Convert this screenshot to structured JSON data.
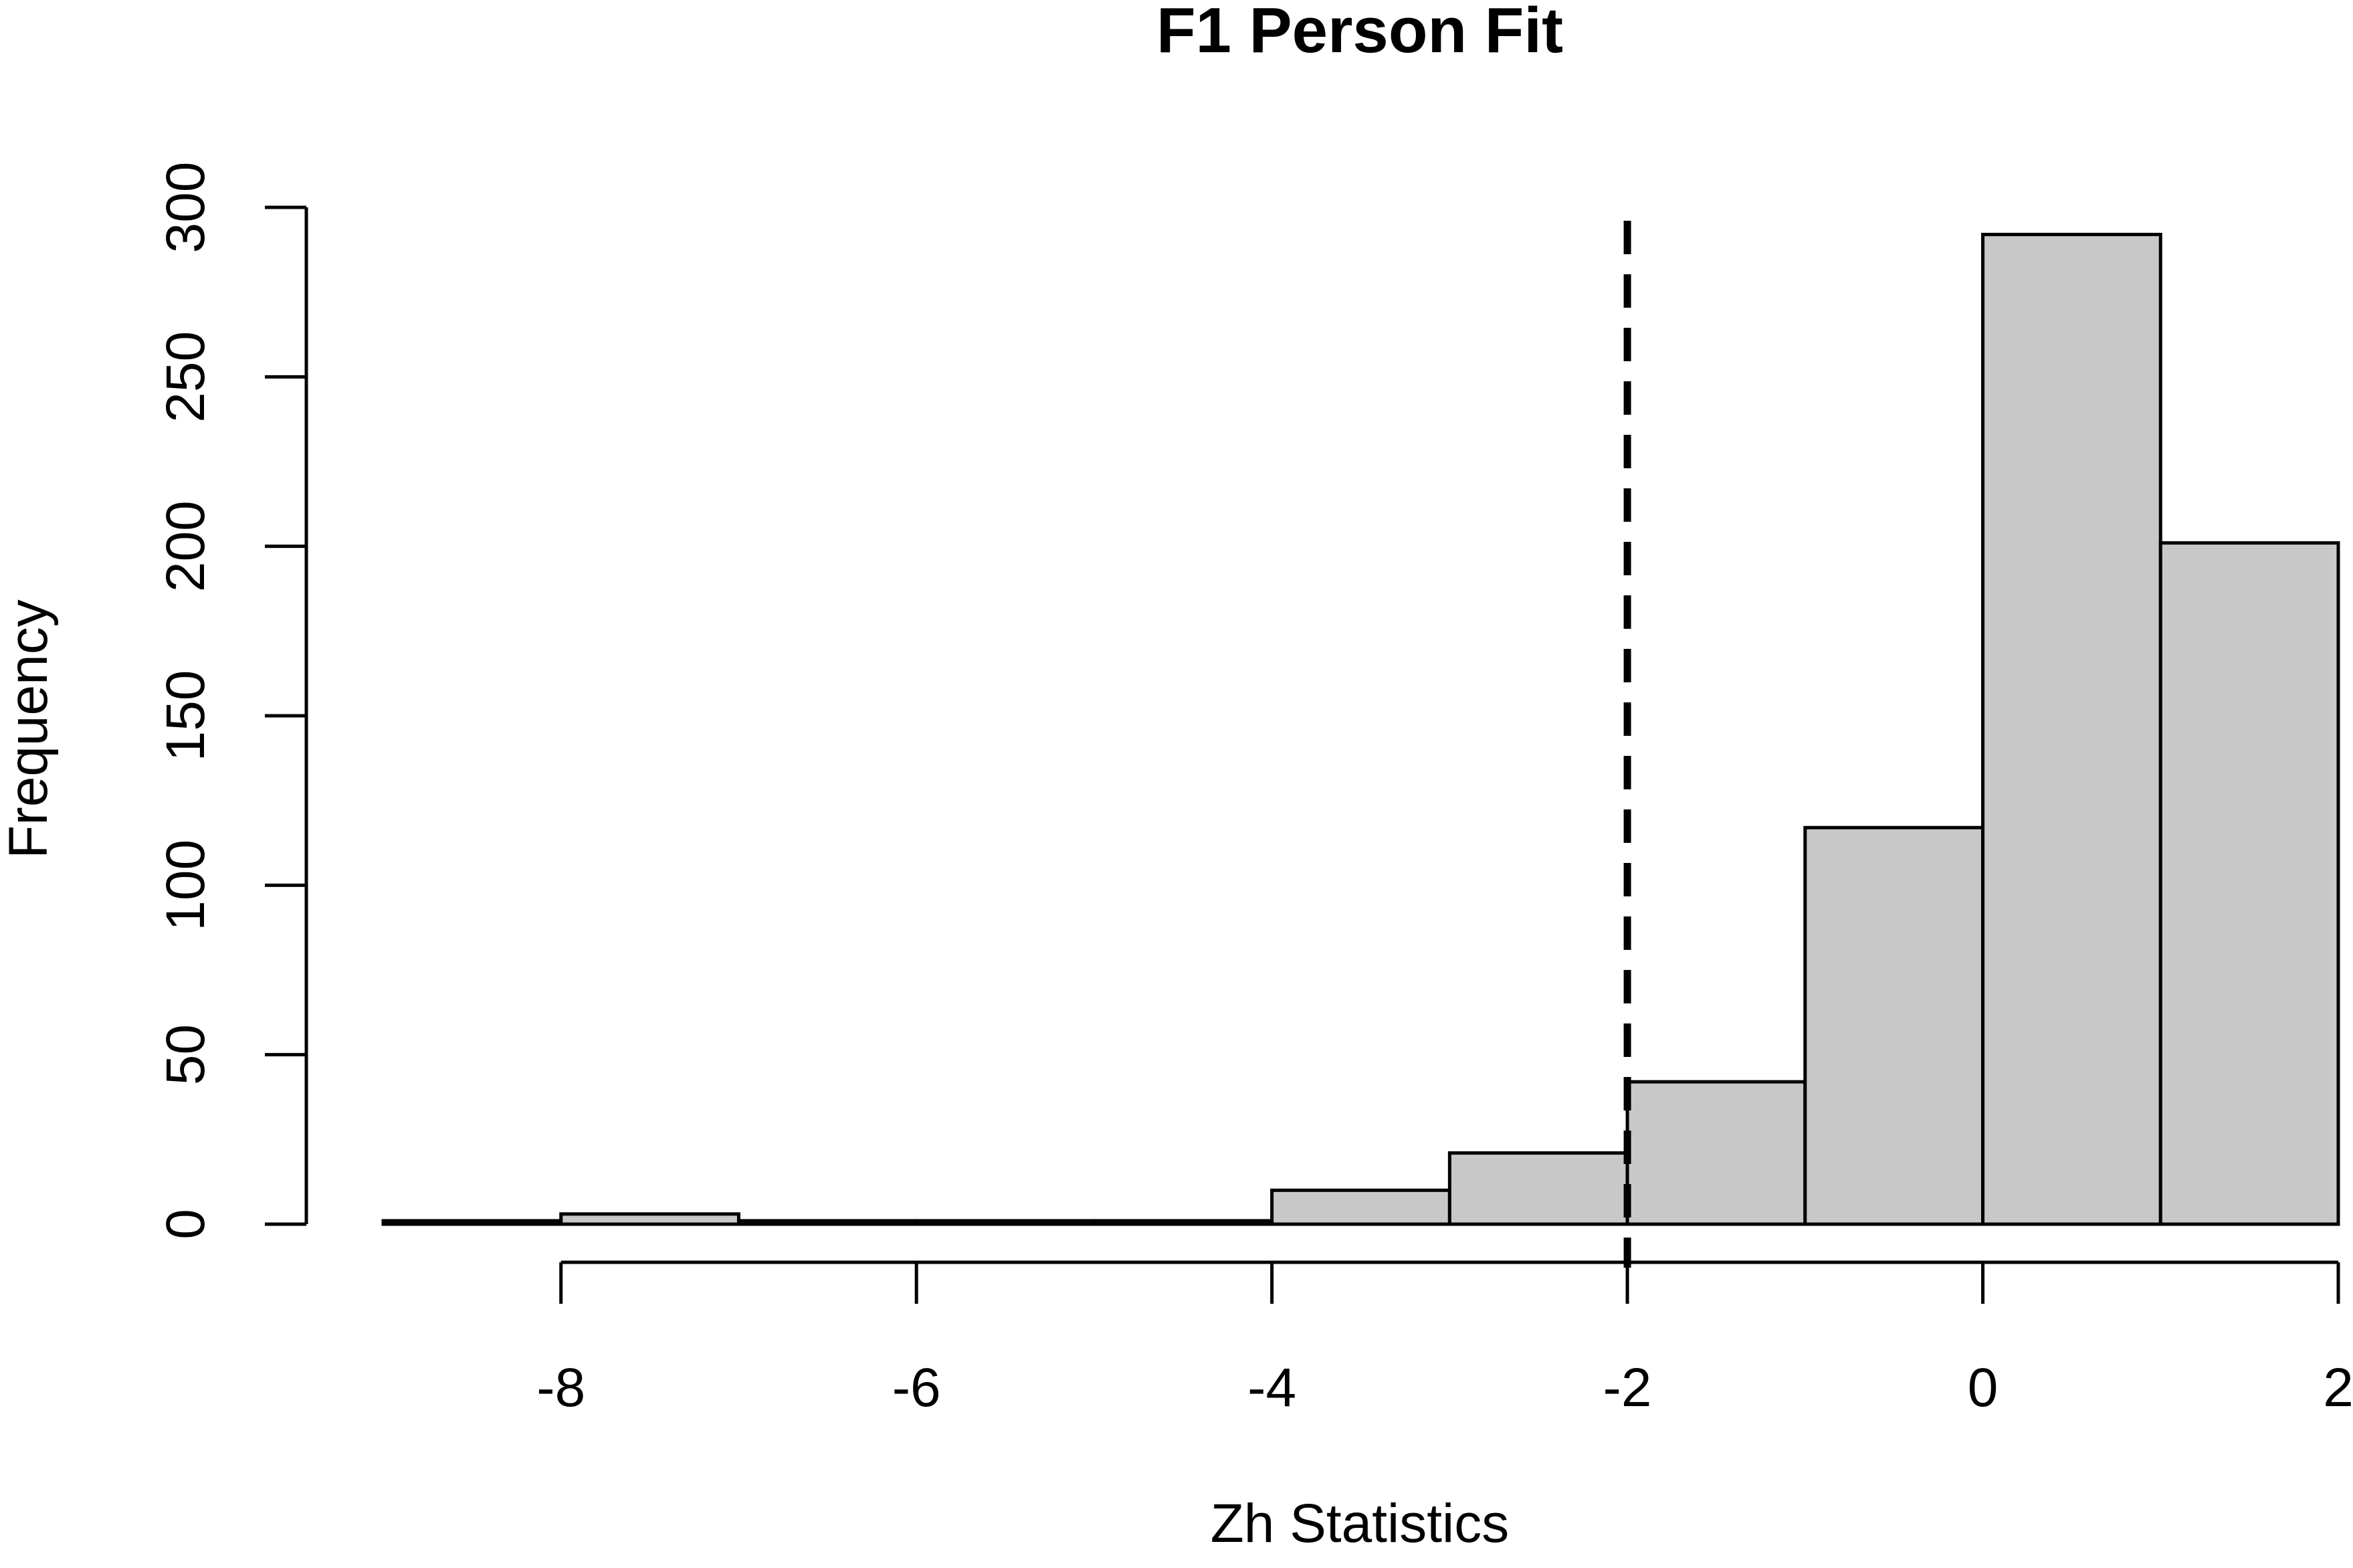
{
  "chart_data": {
    "type": "bar",
    "title": "F1 Person Fit",
    "xlabel": "Zh Statistics",
    "ylabel": "Frequency",
    "bins": [
      {
        "start": -9,
        "end": -8,
        "count": 1
      },
      {
        "start": -8,
        "end": -7,
        "count": 3
      },
      {
        "start": -7,
        "end": -6,
        "count": 1
      },
      {
        "start": -6,
        "end": -5,
        "count": 1
      },
      {
        "start": -5,
        "end": -4,
        "count": 1
      },
      {
        "start": -4,
        "end": -3,
        "count": 10
      },
      {
        "start": -3,
        "end": -2,
        "count": 21
      },
      {
        "start": -2,
        "end": -1,
        "count": 42
      },
      {
        "start": -1,
        "end": 0,
        "count": 117
      },
      {
        "start": 0,
        "end": 1,
        "count": 292
      },
      {
        "start": 1,
        "end": 2,
        "count": 201
      }
    ],
    "xlim": [
      -9,
      2
    ],
    "ylim": [
      0,
      300
    ],
    "x_ticks": [
      -8,
      -6,
      -4,
      -2,
      0,
      2
    ],
    "y_ticks": [
      0,
      50,
      100,
      150,
      200,
      250,
      300
    ],
    "x_tick_labels": [
      "-8",
      "-6",
      "-4",
      "-2",
      "0",
      "2"
    ],
    "y_tick_labels": [
      "0",
      "50",
      "100",
      "150",
      "200",
      "250",
      "300"
    ],
    "reference_line": {
      "x": -2,
      "style": "dashed"
    },
    "bar_color": "#c8c8c8",
    "grid": false
  }
}
